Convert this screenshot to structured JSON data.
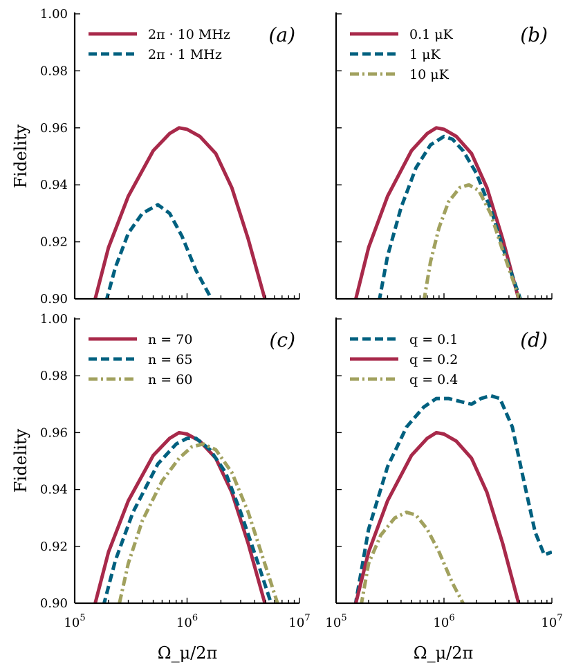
{
  "figure": {
    "ylabel": "Fidelity",
    "xlabel": "Ω_μ/2π",
    "colors": {
      "red": "#A8294A",
      "blue": "#00607F",
      "olive": "#A1A15E"
    }
  },
  "chart_data": [
    {
      "type": "line",
      "panel": "(a)",
      "xscale": "log",
      "xlim": [
        100000,
        10000000
      ],
      "ylim": [
        0.9,
        1.0
      ],
      "yticks": [
        "0.90",
        "0.92",
        "0.94",
        "0.96",
        "0.98",
        "1.00"
      ],
      "xticks": [],
      "legend_position": "top-left",
      "series": [
        {
          "name": "2π · 10 MHz",
          "color": "red",
          "style": "solid",
          "x": [
            150000,
            200000,
            300000,
            500000,
            700000,
            850000,
            1000000,
            1300000,
            1800000,
            2500000,
            3500000,
            5000000
          ],
          "y": [
            0.899,
            0.918,
            0.936,
            0.952,
            0.958,
            0.96,
            0.9595,
            0.957,
            0.951,
            0.939,
            0.921,
            0.899
          ]
        },
        {
          "name": "2π · 1 MHz",
          "color": "blue",
          "style": "dashed",
          "x": [
            190000,
            230000,
            300000,
            400000,
            550000,
            700000,
            900000,
            1200000,
            1700000
          ],
          "y": [
            0.899,
            0.911,
            0.923,
            0.93,
            0.933,
            0.93,
            0.922,
            0.91,
            0.899
          ]
        }
      ]
    },
    {
      "type": "line",
      "panel": "(b)",
      "xscale": "log",
      "xlim": [
        100000,
        10000000
      ],
      "ylim": [
        0.9,
        1.0
      ],
      "yticks": [],
      "xticks": [],
      "legend_position": "top-left",
      "series": [
        {
          "name": "0.1 μK",
          "color": "red",
          "style": "solid",
          "x": [
            150000,
            200000,
            300000,
            500000,
            700000,
            850000,
            1000000,
            1300000,
            1800000,
            2500000,
            3500000,
            5000000
          ],
          "y": [
            0.899,
            0.918,
            0.936,
            0.952,
            0.958,
            0.96,
            0.9595,
            0.957,
            0.951,
            0.939,
            0.921,
            0.899
          ]
        },
        {
          "name": "1 μK",
          "color": "blue",
          "style": "dashed",
          "x": [
            250000,
            300000,
            400000,
            550000,
            750000,
            1000000,
            1200000,
            1500000,
            2000000,
            2800000,
            3800000,
            5200000
          ],
          "y": [
            0.899,
            0.915,
            0.932,
            0.946,
            0.954,
            0.957,
            0.956,
            0.952,
            0.944,
            0.93,
            0.914,
            0.899
          ]
        },
        {
          "name": "10 μK",
          "color": "olive",
          "style": "dashdot",
          "x": [
            650000,
            750000,
            900000,
            1100000,
            1400000,
            1700000,
            2100000,
            2700000,
            3500000,
            4500000,
            5000000
          ],
          "y": [
            0.899,
            0.913,
            0.925,
            0.934,
            0.939,
            0.94,
            0.938,
            0.93,
            0.917,
            0.905,
            0.9
          ]
        }
      ]
    },
    {
      "type": "line",
      "panel": "(c)",
      "xscale": "log",
      "xlim": [
        100000,
        10000000
      ],
      "ylim": [
        0.9,
        1.0
      ],
      "yticks": [
        "0.90",
        "0.92",
        "0.94",
        "0.96",
        "0.98",
        "1.00"
      ],
      "xticks": [
        "10^5",
        "10^6",
        "10^7"
      ],
      "legend_position": "top-left",
      "series": [
        {
          "name": "n = 70",
          "color": "red",
          "style": "solid",
          "x": [
            150000,
            200000,
            300000,
            500000,
            700000,
            850000,
            1000000,
            1300000,
            1800000,
            2500000,
            3500000,
            5000000
          ],
          "y": [
            0.899,
            0.918,
            0.936,
            0.952,
            0.958,
            0.96,
            0.9595,
            0.957,
            0.951,
            0.939,
            0.921,
            0.899
          ]
        },
        {
          "name": "n = 65",
          "color": "blue",
          "style": "dashed",
          "x": [
            180000,
            230000,
            330000,
            550000,
            800000,
            1000000,
            1200000,
            1600000,
            2200000,
            3000000,
            4200000,
            5700000
          ],
          "y": [
            0.899,
            0.915,
            0.932,
            0.949,
            0.956,
            0.958,
            0.958,
            0.954,
            0.946,
            0.932,
            0.915,
            0.899
          ]
        },
        {
          "name": "n = 60",
          "color": "olive",
          "style": "dashdot",
          "x": [
            250000,
            300000,
            400000,
            600000,
            850000,
            1100000,
            1400000,
            1800000,
            2500000,
            3500000,
            5000000,
            6500000
          ],
          "y": [
            0.9,
            0.914,
            0.929,
            0.943,
            0.951,
            0.955,
            0.956,
            0.954,
            0.946,
            0.932,
            0.913,
            0.899
          ]
        }
      ]
    },
    {
      "type": "line",
      "panel": "(d)",
      "xscale": "log",
      "xlim": [
        100000,
        10000000
      ],
      "ylim": [
        0.9,
        1.0
      ],
      "yticks": [],
      "xticks": [
        "10^5",
        "10^6",
        "10^7"
      ],
      "legend_position": "top-left",
      "series": [
        {
          "name": "q = 0.1",
          "color": "blue",
          "style": "dashed",
          "x": [
            150000,
            200000,
            300000,
            450000,
            650000,
            850000,
            1100000,
            1400000,
            1800000,
            2200000,
            2700000,
            3300000,
            4300000,
            5500000,
            7000000,
            8500000,
            10000000
          ],
          "y": [
            0.899,
            0.926,
            0.948,
            0.962,
            0.969,
            0.972,
            0.972,
            0.971,
            0.97,
            0.972,
            0.973,
            0.972,
            0.962,
            0.943,
            0.925,
            0.917,
            0.918
          ]
        },
        {
          "name": "q = 0.2",
          "color": "red",
          "style": "solid",
          "x": [
            150000,
            200000,
            300000,
            500000,
            700000,
            850000,
            1000000,
            1300000,
            1800000,
            2500000,
            3500000,
            5000000
          ],
          "y": [
            0.899,
            0.918,
            0.936,
            0.952,
            0.958,
            0.96,
            0.9595,
            0.957,
            0.951,
            0.939,
            0.921,
            0.899
          ]
        },
        {
          "name": "q = 0.4",
          "color": "olive",
          "style": "dashdot",
          "x": [
            170000,
            200000,
            260000,
            350000,
            450000,
            550000,
            700000,
            900000,
            1200000,
            1550000
          ],
          "y": [
            0.899,
            0.914,
            0.924,
            0.93,
            0.932,
            0.931,
            0.926,
            0.918,
            0.907,
            0.899
          ]
        }
      ]
    }
  ]
}
